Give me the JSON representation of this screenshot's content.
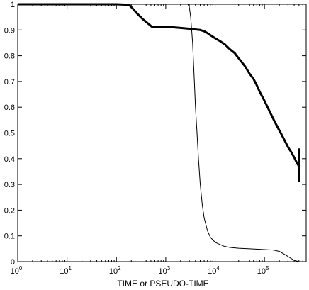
{
  "chart_data": {
    "type": "line",
    "title": "",
    "xlabel": "TIME or PSEUDO-TIME",
    "ylabel": "",
    "x_scale": "log",
    "xlim": [
      1,
      700000
    ],
    "ylim": [
      0,
      1
    ],
    "grid": false,
    "legend": "none",
    "x_ticks": [
      {
        "base": "10",
        "exp": "0",
        "value": 1
      },
      {
        "base": "10",
        "exp": "1",
        "value": 10
      },
      {
        "base": "10",
        "exp": "2",
        "value": 100
      },
      {
        "base": "10",
        "exp": "3",
        "value": 1000
      },
      {
        "base": "10",
        "exp": "4",
        "value": 10000
      },
      {
        "base": "10",
        "exp": "5",
        "value": 100000
      }
    ],
    "y_ticks": [
      "0",
      "0.1",
      "0.2",
      "0.3",
      "0.4",
      "0.5",
      "0.6",
      "0.7",
      "0.8",
      "0.9",
      "1"
    ],
    "series": [
      {
        "style": "thick",
        "color": "#000000",
        "points": [
          [
            1,
            1.0
          ],
          [
            100,
            1.0
          ],
          [
            180,
            0.998
          ],
          [
            210,
            0.985
          ],
          [
            260,
            0.965
          ],
          [
            330,
            0.945
          ],
          [
            420,
            0.928
          ],
          [
            520,
            0.913
          ],
          [
            700,
            0.913
          ],
          [
            1000,
            0.913
          ],
          [
            1500,
            0.91
          ],
          [
            2000,
            0.908
          ],
          [
            3000,
            0.905
          ],
          [
            4000,
            0.902
          ],
          [
            5000,
            0.9
          ],
          [
            6000,
            0.895
          ],
          [
            7000,
            0.888
          ],
          [
            8000,
            0.88
          ],
          [
            10000,
            0.868
          ],
          [
            13000,
            0.855
          ],
          [
            16000,
            0.843
          ],
          [
            20000,
            0.825
          ],
          [
            25000,
            0.81
          ],
          [
            30000,
            0.79
          ],
          [
            40000,
            0.76
          ],
          [
            50000,
            0.73
          ],
          [
            60000,
            0.71
          ],
          [
            70000,
            0.685
          ],
          [
            80000,
            0.66
          ],
          [
            100000,
            0.625
          ],
          [
            130000,
            0.58
          ],
          [
            160000,
            0.545
          ],
          [
            200000,
            0.51
          ],
          [
            250000,
            0.475
          ],
          [
            300000,
            0.445
          ],
          [
            350000,
            0.425
          ],
          [
            400000,
            0.405
          ],
          [
            450000,
            0.385
          ],
          [
            500000,
            0.37
          ]
        ]
      },
      {
        "style": "thin",
        "color": "#000000",
        "points": [
          [
            1,
            1.0
          ],
          [
            2800,
            1.0
          ],
          [
            3000,
            0.99
          ],
          [
            3200,
            0.95
          ],
          [
            3500,
            0.85
          ],
          [
            3800,
            0.7
          ],
          [
            4000,
            0.6
          ],
          [
            4300,
            0.5
          ],
          [
            4600,
            0.4
          ],
          [
            5000,
            0.3
          ],
          [
            5500,
            0.22
          ],
          [
            6000,
            0.17
          ],
          [
            7000,
            0.12
          ],
          [
            8000,
            0.095
          ],
          [
            10000,
            0.075
          ],
          [
            15000,
            0.06
          ],
          [
            20000,
            0.055
          ],
          [
            30000,
            0.052
          ],
          [
            50000,
            0.05
          ],
          [
            80000,
            0.048
          ],
          [
            100000,
            0.047
          ],
          [
            150000,
            0.045
          ],
          [
            200000,
            0.04
          ],
          [
            300000,
            0.02
          ],
          [
            400000,
            0.005
          ],
          [
            500000,
            0.0
          ]
        ]
      }
    ],
    "errorbar": {
      "x": 500000,
      "ymin": 0.31,
      "ymax": 0.44
    }
  }
}
